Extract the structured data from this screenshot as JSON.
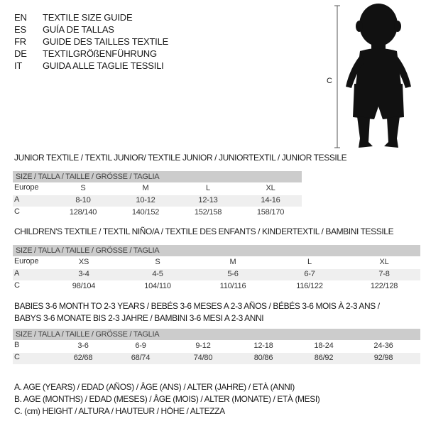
{
  "languages": [
    {
      "code": "EN",
      "title": "TEXTILE SIZE GUIDE"
    },
    {
      "code": "ES",
      "title": "GUÍA DE TALLAS"
    },
    {
      "code": "FR",
      "title": "GUIDE DES TAILLES TEXTILE"
    },
    {
      "code": "DE",
      "title": "TEXTILGRÖßENFÜHRUNG"
    },
    {
      "code": "IT",
      "title": "GUIDA ALLE TAGLIE TESSILI"
    }
  ],
  "figure": {
    "label": "C"
  },
  "size_header": "SIZE / TALLA / TAILLE / GRÖSSE / TAGLIA",
  "tables": [
    {
      "title": "JUNIOR TEXTILE / TEXTIL JUNIOR/ TEXTILE JUNIOR / JUNIORTEXTIL / JUNIOR TESSILE",
      "rows": [
        {
          "label": "Europe",
          "values": [
            "S",
            "M",
            "L",
            "XL"
          ]
        },
        {
          "label": "A",
          "values": [
            "8-10",
            "10-12",
            "12-13",
            "14-16"
          ]
        },
        {
          "label": "C",
          "values": [
            "128/140",
            "140/152",
            "152/158",
            "158/170"
          ]
        }
      ]
    },
    {
      "title": "CHILDREN'S TEXTILE / TEXTIL NIÑO/A / TEXTILE DES ENFANTS / KINDERTEXTIL / BAMBINI TESSILE",
      "rows": [
        {
          "label": "Europe",
          "values": [
            "XS",
            "S",
            "M",
            "L",
            "XL"
          ]
        },
        {
          "label": "A",
          "values": [
            "3-4",
            "4-5",
            "5-6",
            "6-7",
            "7-8"
          ]
        },
        {
          "label": "C",
          "values": [
            "98/104",
            "104/110",
            "110/116",
            "116/122",
            "122/128"
          ]
        }
      ]
    },
    {
      "title": "BABIES 3-6 MONTH TO 2-3 YEARS / BEBÉS 3-6 MESES A 2-3 AÑOS / BÉBÉS 3-6 MOIS À 2-3 ANS /",
      "title2": "BABYS 3-6 MONATE BIS 2-3 JAHRE / BAMBINI 3-6 MESI A 2-3 ANNI",
      "rows": [
        {
          "label": "B",
          "values": [
            "3-6",
            "6-9",
            "9-12",
            "12-18",
            "18-24",
            "24-36"
          ]
        },
        {
          "label": "C",
          "values": [
            "62/68",
            "68/74",
            "74/80",
            "80/86",
            "86/92",
            "92/98"
          ]
        }
      ]
    }
  ],
  "legend": [
    "A. AGE (YEARS) / EDAD (AÑOS) / ÂGE (ANS) / ALTER (JAHRE) / ETÀ (ANNI)",
    "B. AGE (MONTHS) / EDAD (MESES) / ÂGE (MOIS) / ALTER (MONATE) / ETÀ (MESI)",
    "C. (cm) HEIGHT / ALTURA / HAUTEUR / HÖHE / ALTEZZA"
  ]
}
